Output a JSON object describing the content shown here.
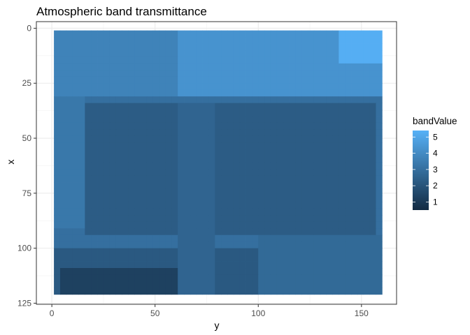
{
  "chart_data": {
    "type": "heatmap",
    "title": "Atmospheric band transmittance",
    "xlabel": "y",
    "ylabel": "x",
    "xlim": [
      -7.5,
      167
    ],
    "ylim": [
      -3,
      125.5
    ],
    "y_reversed": true,
    "x_ticks": [
      0,
      50,
      100,
      150
    ],
    "y_ticks": [
      0,
      25,
      50,
      75,
      100,
      125
    ],
    "grid": true,
    "fill_range": {
      "x": [
        1,
        160
      ],
      "y": [
        1,
        121
      ]
    },
    "grid_size": {
      "cols": 53,
      "rows": 40
    },
    "value_range": [
      0.5,
      5.4
    ],
    "legend": {
      "title": "bandValue",
      "placement": "right",
      "ticks": [
        1,
        2,
        3,
        4,
        5
      ],
      "colors": [
        "#132b43",
        "#56b1f7"
      ]
    },
    "regions": [
      {
        "x": [
          1,
          160
        ],
        "y": [
          1,
          121
        ],
        "value": 3.0
      },
      {
        "x": [
          1,
          160
        ],
        "y": [
          1,
          30
        ],
        "value": 3.7
      },
      {
        "x": [
          60,
          160
        ],
        "y": [
          1,
          30
        ],
        "value": 4.3
      },
      {
        "x": [
          140,
          160
        ],
        "y": [
          1,
          15
        ],
        "value": 5.3
      },
      {
        "x": [
          15,
          158
        ],
        "y": [
          33,
          95
        ],
        "value": 2.3
      },
      {
        "x": [
          1,
          15
        ],
        "y": [
          30,
          90
        ],
        "value": 3.3
      },
      {
        "x": [
          1,
          100
        ],
        "y": [
          100,
          121
        ],
        "value": 2.2
      },
      {
        "x": [
          5,
          60
        ],
        "y": [
          110,
          121
        ],
        "value": 1.3
      },
      {
        "x": [
          100,
          160
        ],
        "y": [
          95,
          121
        ],
        "value": 2.8
      },
      {
        "x": [
          60,
          80
        ],
        "y": [
          33,
          121
        ],
        "value": 2.6
      }
    ]
  }
}
